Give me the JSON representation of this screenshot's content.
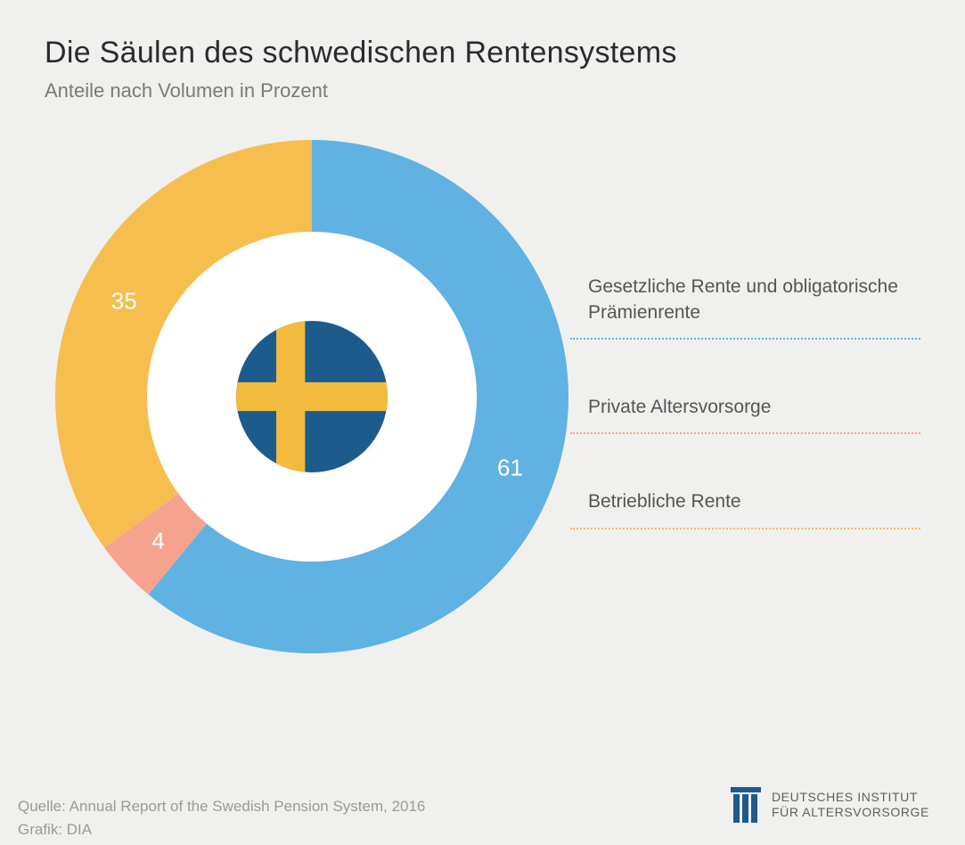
{
  "header": {
    "title": "Die Säulen des schwedischen Rentensystems",
    "subtitle": "Anteile nach Volumen in Prozent"
  },
  "chart": {
    "type": "donut",
    "outer_radius": 288,
    "inner_radius": 185,
    "start_angle_deg": -90,
    "background_color": "#f0f0ee",
    "inner_background": "#ffffff",
    "value_label_color": "#ffffff",
    "value_label_fontsize": 26,
    "slices": [
      {
        "label": "Gesetzliche Rente und obligatorische Prämienrente",
        "value": 61,
        "color": "#60b2e3"
      },
      {
        "label": "Private Altersvorsorge",
        "value": 4,
        "color": "#f5a38e"
      },
      {
        "label": "Betriebliche Rente",
        "value": 35,
        "color": "#f6be4f"
      }
    ],
    "center_icon": {
      "type": "flag-sweden",
      "radius": 85,
      "bg_color": "#1d5b8c",
      "cross_color": "#f3bb3e"
    }
  },
  "legend": {
    "label_fontsize": 21,
    "label_color": "#555654"
  },
  "footer": {
    "source": "Quelle: Annual Report of the Swedish Pension System, 2016",
    "graphic": "Grafik: DIA"
  },
  "brand": {
    "line1": "DEUTSCHES INSTITUT",
    "line2": "FÜR ALTERSVORSORGE",
    "logo_color": "#1d5b8c"
  }
}
